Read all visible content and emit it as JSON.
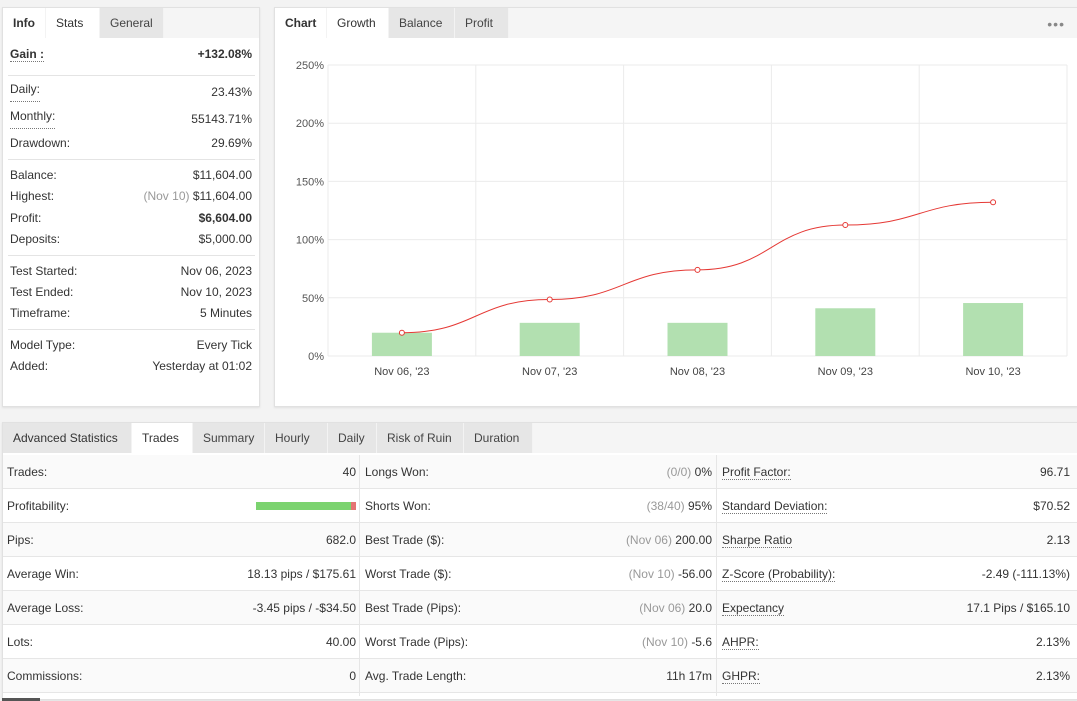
{
  "info_panel": {
    "tabs": [
      "Info",
      "Stats",
      "General"
    ],
    "gain": {
      "label": "Gain :",
      "value": "+132.08%"
    },
    "group1": [
      {
        "label": "Daily:",
        "value": "23.43%",
        "dotted": true
      },
      {
        "label": "Monthly:",
        "value": "55143.71%",
        "dotted": true
      },
      {
        "label": "Drawdown:",
        "value": "29.69%",
        "dotted": false
      }
    ],
    "group2": [
      {
        "label": "Balance:",
        "value": "$11,604.00"
      },
      {
        "label": "Highest:",
        "note": "(Nov 10)",
        "value": "$11,604.00"
      },
      {
        "label": "Profit:",
        "value": "$6,604.00",
        "green": true
      },
      {
        "label": "Deposits:",
        "value": "$5,000.00"
      }
    ],
    "group3": [
      {
        "label": "Test Started:",
        "value": "Nov 06, 2023"
      },
      {
        "label": "Test Ended:",
        "value": "Nov 10, 2023"
      },
      {
        "label": "Timeframe:",
        "value": "5 Minutes"
      }
    ],
    "group4": [
      {
        "label": "Model Type:",
        "value": "Every Tick"
      },
      {
        "label": "Added:",
        "value": "Yesterday at 01:02"
      }
    ]
  },
  "chart_panel": {
    "tabs": [
      "Chart",
      "Growth",
      "Balance",
      "Profit"
    ],
    "menu_icon": "more-dots-icon",
    "menu_text": "•••"
  },
  "chart_data": {
    "type": "bar+line",
    "categories": [
      "Nov 06, '23",
      "Nov 07, '23",
      "Nov 08, '23",
      "Nov 09, '23",
      "Nov 10, '23"
    ],
    "series": [
      {
        "type": "line",
        "values": [
          20,
          48.5,
          74,
          112.5,
          132.08
        ],
        "color": "#e53935"
      },
      {
        "type": "bar",
        "values": [
          20,
          28.5,
          28.5,
          41,
          45.5
        ],
        "color": "#b2e0b0"
      }
    ],
    "yticks": [
      "250%",
      "200%",
      "150%",
      "100%",
      "50%",
      "0%"
    ],
    "ylim": [
      0,
      250
    ],
    "grid": true
  },
  "advanced": {
    "title": "Advanced Statistics",
    "tabs": [
      "Trades",
      "Summary",
      "Hourly",
      "Daily",
      "Risk of Ruin",
      "Duration"
    ],
    "col1": [
      {
        "label": "Trades:",
        "value": "40"
      },
      {
        "label": "Profitability:",
        "bar": {
          "won": 95,
          "lost": 5
        }
      },
      {
        "label": "Pips:",
        "value": "682.0"
      },
      {
        "label": "Average Win:",
        "value": "18.13 pips / $175.61"
      },
      {
        "label": "Average Loss:",
        "value": "-3.45 pips / -$34.50"
      },
      {
        "label": "Lots:",
        "value": "40.00"
      },
      {
        "label": "Commissions:",
        "value": "0"
      }
    ],
    "col2": [
      {
        "label": "Longs Won:",
        "note": "(0/0)",
        "value": "0%"
      },
      {
        "label": "Shorts Won:",
        "note": "(38/40)",
        "value": "95%"
      },
      {
        "label": "Best Trade ($):",
        "note": "(Nov 06)",
        "value": "200.00"
      },
      {
        "label": "Worst Trade ($):",
        "note": "(Nov 10)",
        "value": "-56.00"
      },
      {
        "label": "Best Trade (Pips):",
        "note": "(Nov 06)",
        "value": "20.0"
      },
      {
        "label": "Worst Trade (Pips):",
        "note": "(Nov 10)",
        "value": "-5.6"
      },
      {
        "label": "Avg. Trade Length:",
        "value": "11h 17m"
      }
    ],
    "col3": [
      {
        "label": "Profit Factor:",
        "value": "96.71"
      },
      {
        "label": "Standard Deviation:",
        "value": "$70.52"
      },
      {
        "label": "Sharpe Ratio",
        "value": "2.13"
      },
      {
        "label": "Z-Score (Probability):",
        "value": "-2.49 (-111.13%)"
      },
      {
        "label": "Expectancy",
        "value": "17.1 Pips / $165.10"
      },
      {
        "label": "AHPR:",
        "value": "2.13%"
      },
      {
        "label": "GHPR:",
        "value": "2.13%"
      }
    ]
  }
}
